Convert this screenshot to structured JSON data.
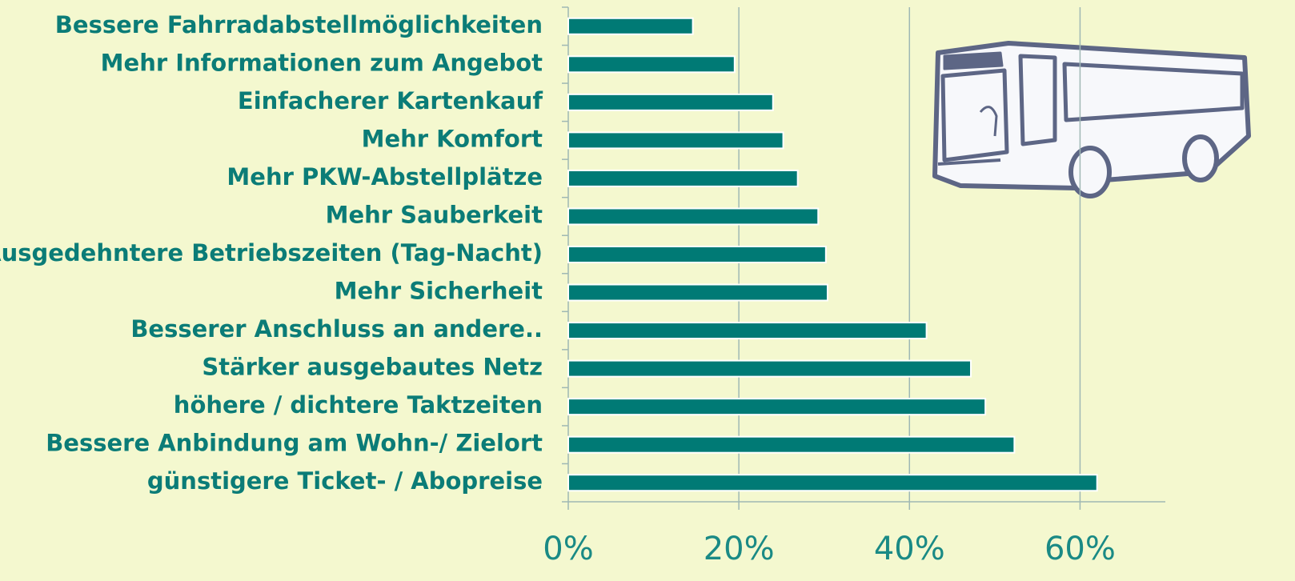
{
  "chart_data": {
    "type": "bar",
    "orientation": "horizontal",
    "categories": [
      "Bessere Fahrradabstellmöglichkeiten",
      "Mehr Informationen zum Angebot",
      "Einfacherer Kartenkauf",
      "Mehr Komfort",
      "Mehr PKW-Abstellplätze",
      "Mehr Sauberkeit",
      "Ausgedehntere Betriebszeiten (Tag-Nacht)",
      "Mehr Sicherheit",
      "Besserer Anschluss an andere..",
      "Stärker ausgebautes Netz",
      "höhere / dichtere Taktzeiten",
      "Bessere Anbindung am Wohn-/ Zielort",
      "günstigere Ticket- / Abopreise"
    ],
    "values": [
      14.6,
      19.5,
      24.0,
      25.2,
      26.9,
      29.3,
      30.2,
      30.4,
      42.0,
      47.2,
      48.9,
      52.3,
      62.0
    ],
    "color": "#007a75",
    "xlim": [
      0,
      70
    ],
    "xticks": [
      {
        "value": 0,
        "label": "0%"
      },
      {
        "value": 20,
        "label": "20%"
      },
      {
        "value": 40,
        "label": "40%"
      },
      {
        "value": 60,
        "label": "60%"
      }
    ],
    "grid": true
  }
}
